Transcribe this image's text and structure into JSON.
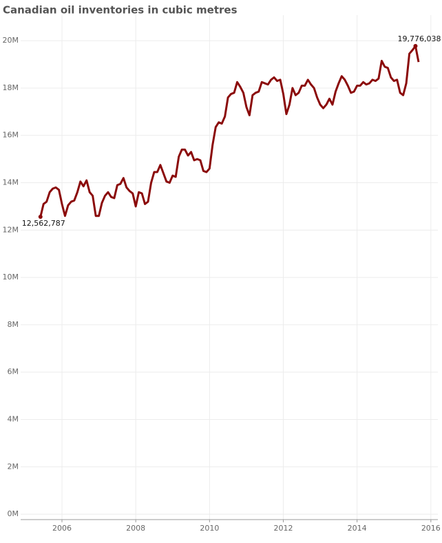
{
  "chart_data": {
    "type": "line",
    "title": "Canadian oil inventories in cubic metres",
    "color": "#8b0a0a",
    "grid": true,
    "xlim": [
      2004.88,
      2016.19
    ],
    "xticks": [
      2006,
      2008,
      2010,
      2012,
      2014,
      2016
    ],
    "ylim": [
      -230000,
      21080000
    ],
    "yticks": [
      {
        "value": 0,
        "label": "0M"
      },
      {
        "value": 2000000,
        "label": "2M"
      },
      {
        "value": 4000000,
        "label": "4M"
      },
      {
        "value": 6000000,
        "label": "6M"
      },
      {
        "value": 8000000,
        "label": "8M"
      },
      {
        "value": 10000000,
        "label": "10M"
      },
      {
        "value": 12000000,
        "label": "12M"
      },
      {
        "value": 14000000,
        "label": "14M"
      },
      {
        "value": 16000000,
        "label": "16M"
      },
      {
        "value": 18000000,
        "label": "18M"
      },
      {
        "value": 20000000,
        "label": "20M"
      }
    ],
    "x": [
      2005.417,
      2005.5,
      2005.583,
      2005.667,
      2005.75,
      2005.833,
      2005.917,
      2006.0,
      2006.083,
      2006.167,
      2006.25,
      2006.333,
      2006.417,
      2006.5,
      2006.583,
      2006.667,
      2006.75,
      2006.833,
      2006.917,
      2007.0,
      2007.083,
      2007.167,
      2007.25,
      2007.333,
      2007.417,
      2007.5,
      2007.583,
      2007.667,
      2007.75,
      2007.833,
      2007.917,
      2008.0,
      2008.083,
      2008.167,
      2008.25,
      2008.333,
      2008.417,
      2008.5,
      2008.583,
      2008.667,
      2008.75,
      2008.833,
      2008.917,
      2009.0,
      2009.083,
      2009.167,
      2009.25,
      2009.333,
      2009.417,
      2009.5,
      2009.583,
      2009.667,
      2009.75,
      2009.833,
      2009.917,
      2010.0,
      2010.083,
      2010.167,
      2010.25,
      2010.333,
      2010.417,
      2010.5,
      2010.583,
      2010.667,
      2010.75,
      2010.833,
      2010.917,
      2011.0,
      2011.083,
      2011.167,
      2011.25,
      2011.333,
      2011.417,
      2011.5,
      2011.583,
      2011.667,
      2011.75,
      2011.833,
      2011.917,
      2012.0,
      2012.083,
      2012.167,
      2012.25,
      2012.333,
      2012.417,
      2012.5,
      2012.583,
      2012.667,
      2012.75,
      2012.833,
      2012.917,
      2013.0,
      2013.083,
      2013.167,
      2013.25,
      2013.333,
      2013.417,
      2013.5,
      2013.583,
      2013.667,
      2013.75,
      2013.833,
      2013.917,
      2014.0,
      2014.083,
      2014.167,
      2014.25,
      2014.333,
      2014.417,
      2014.5,
      2014.583,
      2014.667,
      2014.75,
      2014.833,
      2014.917,
      2015.0,
      2015.083,
      2015.167,
      2015.25,
      2015.333,
      2015.417,
      2015.5,
      2015.583,
      2015.667
    ],
    "values": [
      12562787,
      13100000,
      13200000,
      13600000,
      13750000,
      13800000,
      13700000,
      13100000,
      12600000,
      13050000,
      13200000,
      13250000,
      13600000,
      14050000,
      13850000,
      14100000,
      13600000,
      13450000,
      12600000,
      12600000,
      13150000,
      13450000,
      13600000,
      13400000,
      13350000,
      13900000,
      13950000,
      14200000,
      13800000,
      13650000,
      13550000,
      13000000,
      13600000,
      13550000,
      13100000,
      13200000,
      14000000,
      14450000,
      14450000,
      14750000,
      14400000,
      14050000,
      14000000,
      14300000,
      14250000,
      15100000,
      15400000,
      15400000,
      15150000,
      15300000,
      14950000,
      15000000,
      14950000,
      14500000,
      14450000,
      14600000,
      15600000,
      16350000,
      16550000,
      16500000,
      16800000,
      17600000,
      17750000,
      17800000,
      18250000,
      18050000,
      17800000,
      17200000,
      16850000,
      17700000,
      17800000,
      17850000,
      18250000,
      18200000,
      18150000,
      18350000,
      18450000,
      18300000,
      18350000,
      17750000,
      16900000,
      17300000,
      18000000,
      17700000,
      17800000,
      18100000,
      18100000,
      18350000,
      18150000,
      18000000,
      17600000,
      17300000,
      17150000,
      17300000,
      17550000,
      17300000,
      17850000,
      18200000,
      18500000,
      18350000,
      18100000,
      17800000,
      17850000,
      18100000,
      18100000,
      18250000,
      18150000,
      18200000,
      18350000,
      18300000,
      18400000,
      19150000,
      18900000,
      18850000,
      18450000,
      18300000,
      18350000,
      17800000,
      17700000,
      18200000,
      19450000,
      19600000,
      19776038,
      19100000
    ],
    "value_labels": [
      "12,562,787",
      null,
      null,
      null,
      null,
      null,
      null,
      null,
      null,
      null,
      null,
      null,
      null,
      null,
      null,
      null,
      null,
      null,
      null,
      null,
      null,
      null,
      null,
      null,
      null,
      null,
      null,
      null,
      null,
      null,
      null,
      null,
      null,
      null,
      null,
      null,
      null,
      null,
      null,
      null,
      null,
      null,
      null,
      null,
      null,
      null,
      null,
      null,
      null,
      null,
      null,
      null,
      null,
      null,
      null,
      null,
      null,
      null,
      null,
      null,
      null,
      null,
      null,
      null,
      null,
      null,
      null,
      null,
      null,
      null,
      null,
      null,
      null,
      null,
      null,
      null,
      null,
      null,
      null,
      null,
      null,
      null,
      null,
      null,
      null,
      null,
      null,
      null,
      null,
      null,
      null,
      null,
      null,
      null,
      null,
      null,
      null,
      null,
      null,
      null,
      null,
      null,
      null,
      null,
      null,
      null,
      null,
      null,
      null,
      null,
      null,
      null,
      null,
      null,
      null,
      null,
      null,
      null,
      null,
      null,
      null,
      null,
      "19,776,038",
      null
    ]
  }
}
